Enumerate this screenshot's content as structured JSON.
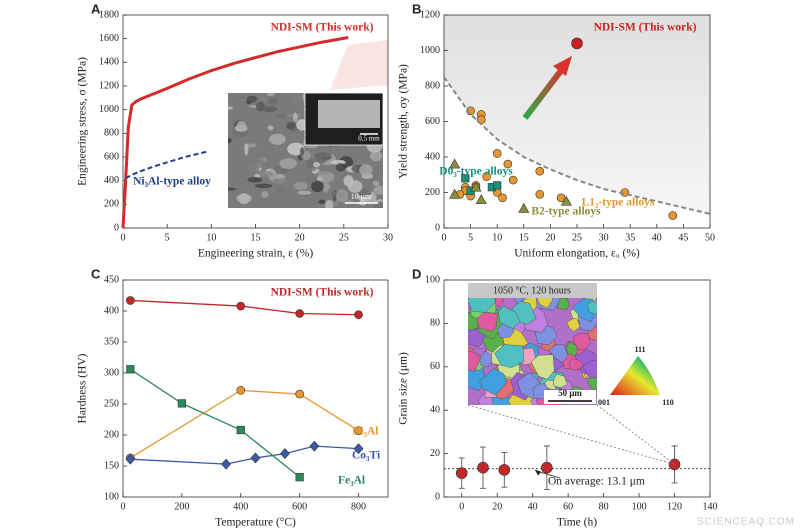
{
  "chart_data": [
    {
      "type": "line",
      "panel_label": "A",
      "xlabel": "Engineering strain, ε (%)",
      "ylabel": "Engineering stress, σ (MPa)",
      "xlim": [
        0,
        30
      ],
      "ylim": [
        0,
        1800
      ],
      "xticks": [
        0,
        5,
        10,
        15,
        20,
        25,
        30
      ],
      "yticks": [
        0,
        200,
        400,
        600,
        800,
        1000,
        1200,
        1400,
        1600,
        1800
      ],
      "series": [
        {
          "name": "NDI-SM (This work)",
          "color": "#d42a2a",
          "x": [
            0,
            0.3,
            0.6,
            1,
            1.5,
            2,
            3,
            5,
            7.5,
            10,
            12.5,
            15,
            17.5,
            20,
            22.5,
            25.5
          ],
          "values": [
            0,
            400,
            850,
            1040,
            1070,
            1090,
            1120,
            1180,
            1260,
            1330,
            1390,
            1440,
            1490,
            1530,
            1570,
            1610
          ]
        },
        {
          "name": "Ni₃Al-type alloy",
          "color": "#1f3f8f",
          "dash": true,
          "x": [
            0.3,
            1,
            2,
            3.5,
            5,
            7,
            9.5
          ],
          "values": [
            420,
            450,
            480,
            520,
            555,
            600,
            645
          ]
        }
      ],
      "inset_labels": [
        "0.5 mm",
        "10 μm"
      ]
    },
    {
      "type": "scatter",
      "panel_label": "B",
      "xlabel": "Uniform elongation, εᵤ (%)",
      "ylabel": "Yield strength, σy (MPa)",
      "xlim": [
        0,
        50
      ],
      "ylim": [
        0,
        1200
      ],
      "xticks": [
        0,
        5,
        10,
        15,
        20,
        25,
        30,
        35,
        40,
        45,
        50
      ],
      "yticks": [
        0,
        200,
        400,
        600,
        800,
        1000,
        1200
      ],
      "series": [
        {
          "name": "NDI-SM (This work)",
          "color": "#cc1f1f",
          "marker": "circle-large",
          "x": [
            25
          ],
          "values": [
            1040
          ]
        },
        {
          "name": "L1₂-type alloys",
          "color": "#e8962e",
          "marker": "circle",
          "x": [
            5,
            7,
            7,
            4,
            5,
            4,
            3,
            6,
            6,
            10,
            12,
            8,
            10,
            11,
            13,
            18,
            18,
            22,
            34,
            43
          ],
          "values": [
            660,
            640,
            610,
            230,
            180,
            210,
            190,
            240,
            230,
            420,
            360,
            290,
            200,
            170,
            270,
            320,
            190,
            170,
            200,
            70
          ]
        },
        {
          "name": "D0₃-type alloys",
          "color": "#1a8f7a",
          "marker": "square",
          "x": [
            4,
            9,
            10,
            5
          ],
          "values": [
            280,
            230,
            240,
            210
          ]
        },
        {
          "name": "B2-type alloys",
          "color": "#8a8f3a",
          "marker": "triangle",
          "x": [
            2,
            2,
            7,
            6,
            15,
            23
          ],
          "values": [
            360,
            190,
            160,
            230,
            110,
            150
          ]
        },
        {
          "color": "#888888",
          "dash": true,
          "x": [
            0,
            5,
            10,
            15,
            20,
            25,
            30,
            40,
            50
          ],
          "values": [
            850,
            640,
            500,
            400,
            330,
            270,
            220,
            150,
            80
          ]
        }
      ]
    },
    {
      "type": "line",
      "panel_label": "C",
      "xlabel": "Temperature (°C)",
      "ylabel": "Hardness (HV)",
      "xlim": [
        0,
        900
      ],
      "ylim": [
        100,
        450
      ],
      "xticks": [
        0,
        200,
        400,
        600,
        800
      ],
      "yticks": [
        100,
        150,
        200,
        250,
        300,
        350,
        400,
        450
      ],
      "series": [
        {
          "name": "NDI-SM (This work)",
          "color": "#c0282a",
          "marker": "circle",
          "x": [
            25,
            400,
            600,
            800
          ],
          "values": [
            417,
            408,
            396,
            394
          ]
        },
        {
          "name": "Ni₃Al",
          "color": "#e8962e",
          "marker": "circle",
          "x": [
            25,
            400,
            600,
            800
          ],
          "values": [
            163,
            272,
            266,
            207
          ]
        },
        {
          "name": "Co₃Ti",
          "color": "#3a5aa8",
          "marker": "diamond",
          "x": [
            25,
            350,
            450,
            550,
            650,
            800
          ],
          "values": [
            161,
            153,
            163,
            170,
            182,
            178
          ]
        },
        {
          "name": "Fe₃Al",
          "color": "#2a8a5a",
          "marker": "square",
          "x": [
            25,
            200,
            400,
            600
          ],
          "values": [
            306,
            251,
            208,
            132
          ]
        }
      ]
    },
    {
      "type": "scatter",
      "panel_label": "D",
      "xlabel": "Time (h)",
      "ylabel": "Grain size (μm)",
      "xlim": [
        -10,
        140
      ],
      "ylim": [
        0,
        100
      ],
      "xticks": [
        0,
        20,
        40,
        60,
        80,
        100,
        120,
        140
      ],
      "yticks": [
        0,
        20,
        40,
        60,
        80,
        100
      ],
      "series": [
        {
          "color": "#c0282a",
          "marker": "circle-large",
          "x": [
            0,
            12,
            24,
            48,
            120
          ],
          "values": [
            11,
            13.5,
            12.5,
            13.5,
            15
          ],
          "errors": [
            7,
            9.5,
            8,
            10,
            8.5
          ]
        }
      ],
      "reference": {
        "value": 13.1,
        "label": "On average: 13.1 μm"
      },
      "inset_labels": [
        "1050 °C, 120 hours",
        "50 μm",
        "111",
        "001",
        "110"
      ]
    }
  ],
  "watermark": "SCIENCEAQ.COM"
}
